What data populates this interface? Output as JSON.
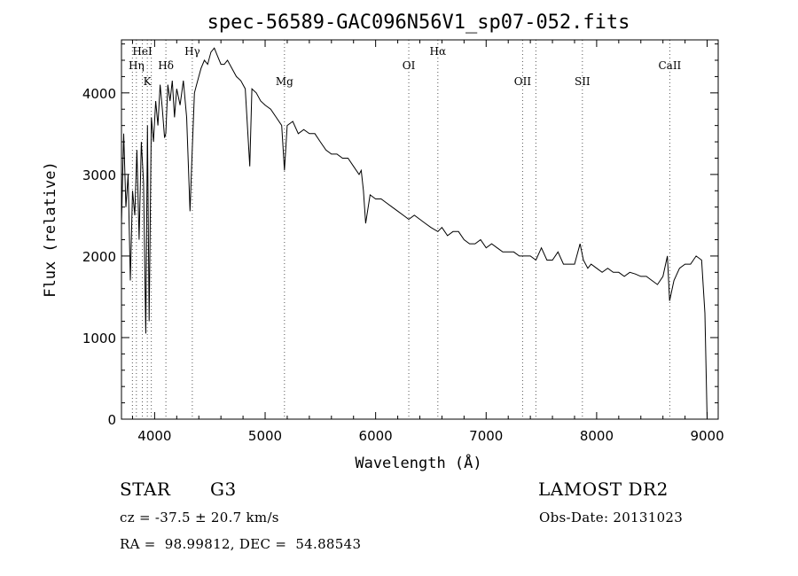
{
  "chart_data": {
    "type": "line",
    "title": "spec-56589-GAC096N56V1_sp07-052.fits",
    "xlabel": "Wavelength (Å)",
    "ylabel": "Flux (relative)",
    "xlim": [
      3700,
      9100
    ],
    "ylim": [
      0,
      4650
    ],
    "xticks": [
      4000,
      5000,
      6000,
      7000,
      8000,
      9000
    ],
    "yticks": [
      0,
      1000,
      2000,
      3000,
      4000
    ],
    "grid": false,
    "line_color": "#000000",
    "series": [
      {
        "x": [
          3700,
          3720,
          3740,
          3760,
          3780,
          3800,
          3820,
          3840,
          3860,
          3880,
          3900,
          3920,
          3935,
          3950,
          3970,
          3990,
          4010,
          4030,
          4050,
          4070,
          4090,
          4101,
          4120,
          4140,
          4160,
          4180,
          4200,
          4230,
          4260,
          4290,
          4320,
          4340,
          4360,
          4380,
          4400,
          4420,
          4450,
          4480,
          4510,
          4540,
          4570,
          4600,
          4630,
          4660,
          4700,
          4740,
          4780,
          4820,
          4861,
          4880,
          4920,
          4960,
          5000,
          5050,
          5100,
          5150,
          5175,
          5200,
          5250,
          5300,
          5350,
          5400,
          5450,
          5500,
          5550,
          5600,
          5650,
          5700,
          5750,
          5800,
          5850,
          5870,
          5890,
          5910,
          5950,
          6000,
          6050,
          6100,
          6150,
          6200,
          6250,
          6300,
          6350,
          6400,
          6450,
          6500,
          6563,
          6600,
          6650,
          6700,
          6750,
          6800,
          6850,
          6900,
          6950,
          7000,
          7050,
          7100,
          7150,
          7200,
          7250,
          7300,
          7350,
          7400,
          7450,
          7500,
          7550,
          7600,
          7650,
          7700,
          7750,
          7800,
          7850,
          7880,
          7920,
          7950,
          8000,
          8050,
          8100,
          8150,
          8200,
          8250,
          8300,
          8350,
          8400,
          8450,
          8500,
          8550,
          8600,
          8640,
          8660,
          8700,
          8750,
          8800,
          8850,
          8900,
          8950,
          8980,
          9000
        ],
        "y": [
          2400,
          3500,
          2600,
          3000,
          1700,
          2800,
          2500,
          3300,
          2200,
          3400,
          2900,
          1050,
          3600,
          1200,
          3700,
          3400,
          3900,
          3600,
          4100,
          3800,
          3450,
          3500,
          4100,
          3900,
          4150,
          3700,
          4050,
          3850,
          4150,
          3700,
          2550,
          3300,
          4000,
          4100,
          4200,
          4300,
          4400,
          4350,
          4500,
          4550,
          4450,
          4350,
          4350,
          4400,
          4300,
          4200,
          4150,
          4050,
          3100,
          4050,
          4000,
          3900,
          3850,
          3800,
          3700,
          3600,
          3050,
          3600,
          3650,
          3500,
          3550,
          3500,
          3500,
          3400,
          3300,
          3250,
          3250,
          3200,
          3200,
          3100,
          3000,
          3050,
          2800,
          2400,
          2750,
          2700,
          2700,
          2650,
          2600,
          2550,
          2500,
          2450,
          2500,
          2450,
          2400,
          2350,
          2300,
          2350,
          2250,
          2300,
          2300,
          2200,
          2150,
          2150,
          2200,
          2100,
          2150,
          2100,
          2050,
          2050,
          2050,
          2000,
          2000,
          2000,
          1950,
          2100,
          1950,
          1950,
          2050,
          1900,
          1900,
          1900,
          2150,
          1950,
          1850,
          1900,
          1850,
          1800,
          1850,
          1800,
          1800,
          1750,
          1800,
          1780,
          1750,
          1750,
          1700,
          1650,
          1750,
          2000,
          1450,
          1700,
          1850,
          1900,
          1900,
          2000,
          1950,
          1300,
          0
        ]
      }
    ],
    "lines": [
      {
        "label": "HeI",
        "x": 3889,
        "tier": 1
      },
      {
        "label": "Hη",
        "x": 3835,
        "tier": 2
      },
      {
        "label": "K",
        "x": 3934,
        "tier": 3
      },
      {
        "label": "Hδ",
        "x": 4102,
        "tier": 2
      },
      {
        "label": "Hγ",
        "x": 4341,
        "tier": 1
      },
      {
        "label": "Mg",
        "x": 5175,
        "tier": 3
      },
      {
        "label": "OI",
        "x": 6300,
        "tier": 2
      },
      {
        "label": "Hα",
        "x": 6563,
        "tier": 1
      },
      {
        "label": "OII",
        "x": 7330,
        "tier": 3
      },
      {
        "label": "SII",
        "x": 7871,
        "tier": 3
      },
      {
        "label": "CaII",
        "x": 8662,
        "tier": 2
      }
    ],
    "extra_dotted_x": [
      3799,
      3970,
      7450
    ]
  },
  "info": {
    "class": "STAR",
    "subclass": "G3",
    "survey": "LAMOST DR2",
    "cz": "cz = -37.5 ± 20.7 km/s",
    "obs_date": "Obs-Date: 20131023",
    "coords": "RA =  98.99812, DEC =  54.88543"
  }
}
